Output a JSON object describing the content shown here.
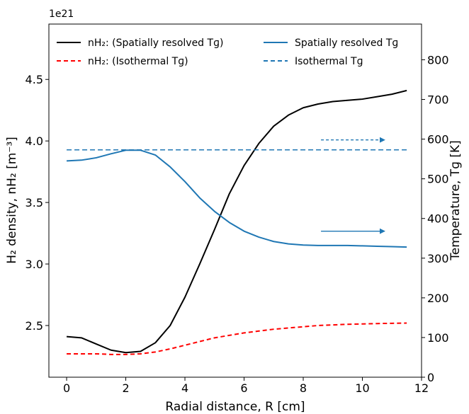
{
  "chart_data": {
    "type": "line",
    "scale_note": "1e21",
    "xlabel": "Radial distance, R [cm]",
    "ylabel_left": "H₂ density, nH₂ [m⁻³]",
    "ylabel_right": "Temperature, Tɡ [K]",
    "xlim": [
      -0.6,
      12
    ],
    "ylim_left": [
      2.08,
      4.95
    ],
    "ylim_right": [
      0,
      890
    ],
    "x_ticks": [
      0,
      2,
      4,
      6,
      8,
      10,
      12
    ],
    "y_left_ticks": [
      "2.5",
      "3.0",
      "3.5",
      "4.0",
      "4.5"
    ],
    "y_right_ticks": [
      0,
      100,
      200,
      300,
      400,
      500,
      600,
      700,
      800
    ],
    "legend_position": "top",
    "legend": [
      {
        "label": "nH₂: (Spatially resolved Tɡ)",
        "color": "#000000",
        "style": "solid"
      },
      {
        "label": "nH₂: (Isothermal Tɡ)",
        "color": "#ff0000",
        "style": "dashed"
      },
      {
        "label": "Spatially resolved Tɡ",
        "color": "#1f77b4",
        "style": "solid"
      },
      {
        "label": "Isothermal Tɡ",
        "color": "#1f77b4",
        "style": "dashed"
      }
    ],
    "series": [
      {
        "name": "nH₂: (Spatially resolved Tɡ)",
        "axis": "left",
        "color": "#000000",
        "style": "solid",
        "x": [
          0,
          0.5,
          1.0,
          1.5,
          2.0,
          2.5,
          3.0,
          3.5,
          4.0,
          4.5,
          5.0,
          5.5,
          6.0,
          6.5,
          7.0,
          7.5,
          8.0,
          8.5,
          9.0,
          9.5,
          10.0,
          10.5,
          11.0,
          11.5
        ],
        "y": [
          2.41,
          2.4,
          2.35,
          2.3,
          2.28,
          2.29,
          2.36,
          2.5,
          2.73,
          3.0,
          3.28,
          3.57,
          3.8,
          3.98,
          4.12,
          4.21,
          4.27,
          4.3,
          4.32,
          4.33,
          4.34,
          4.36,
          4.38,
          4.41
        ]
      },
      {
        "name": "nH₂: (Isothermal Tɡ)",
        "axis": "left",
        "color": "#ff0000",
        "style": "dashed",
        "x": [
          0,
          0.5,
          1.0,
          1.5,
          2.0,
          2.5,
          3.0,
          3.5,
          4.0,
          4.5,
          5.0,
          5.5,
          6.0,
          6.5,
          7.0,
          7.5,
          8.0,
          8.5,
          9.0,
          9.5,
          10.0,
          10.5,
          11.0,
          11.5
        ],
        "y": [
          2.27,
          2.27,
          2.27,
          2.265,
          2.265,
          2.27,
          2.285,
          2.31,
          2.34,
          2.37,
          2.4,
          2.42,
          2.44,
          2.455,
          2.47,
          2.48,
          2.49,
          2.5,
          2.505,
          2.51,
          2.513,
          2.516,
          2.518,
          2.52
        ]
      },
      {
        "name": "Spatially resolved Tɡ",
        "axis": "right",
        "color": "#1f77b4",
        "style": "solid",
        "x": [
          0,
          0.5,
          1.0,
          1.5,
          2.0,
          2.5,
          3.0,
          3.5,
          4.0,
          4.5,
          5.0,
          5.5,
          6.0,
          6.5,
          7.0,
          7.5,
          8.0,
          8.5,
          9.0,
          9.5,
          10.0,
          10.5,
          11.0,
          11.5
        ],
        "y": [
          545,
          547,
          553,
          563,
          572,
          572,
          560,
          530,
          493,
          452,
          418,
          390,
          368,
          353,
          342,
          336,
          333,
          332,
          332,
          332,
          331,
          330,
          329,
          328
        ]
      },
      {
        "name": "Isothermal Tɡ",
        "axis": "right",
        "color": "#1f77b4",
        "style": "dashed",
        "x": [
          0,
          11.5
        ],
        "y": [
          573,
          573
        ]
      }
    ],
    "annotations": [
      {
        "type": "arrow",
        "axis": "right",
        "x_start": 8.6,
        "x_end": 10.8,
        "y": 598,
        "style": "dashed",
        "color": "#1f77b4"
      },
      {
        "type": "arrow",
        "axis": "right",
        "x_start": 8.6,
        "x_end": 10.8,
        "y": 368,
        "style": "solid",
        "color": "#1f77b4"
      }
    ]
  }
}
